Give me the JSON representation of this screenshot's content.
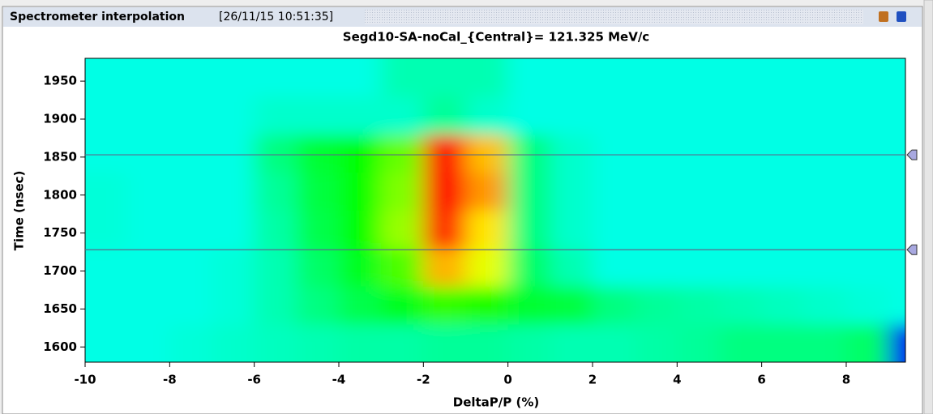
{
  "window": {
    "title": "Spectrometer interpolation",
    "timestamp": "[26/11/15 10:51:35]"
  },
  "chart_data": {
    "type": "heatmap",
    "title": "Segd10-SA-noCal_{Central}= 121.325 MeV/c",
    "x_label": "DeltaP/P (%)",
    "y_label": "Time (nsec)",
    "xlim": [
      -10,
      9.4
    ],
    "xticks": [
      -10,
      -8,
      -6,
      -4,
      -2,
      0,
      2,
      4,
      6,
      8
    ],
    "ylim": [
      1580,
      1980
    ],
    "yticks": [
      1600,
      1650,
      1700,
      1750,
      1800,
      1850,
      1900,
      1950
    ],
    "x_edges": [
      -10,
      -9,
      -8,
      -7,
      -6,
      -5,
      -4,
      -3,
      -2,
      -1,
      0,
      1,
      2,
      3,
      4,
      5,
      6,
      7,
      8,
      9,
      9.4
    ],
    "y_edges": [
      1580,
      1630,
      1680,
      1730,
      1780,
      1830,
      1880,
      1930,
      1980
    ],
    "zlim": [
      0,
      1
    ],
    "colormap": [
      "#0000c0",
      "#0000ff",
      "#00ffff",
      "#00ff00",
      "#ffff00",
      "#ff0000"
    ],
    "z": [
      [
        0.42,
        0.42,
        0.43,
        0.44,
        0.45,
        0.46,
        0.47,
        0.47,
        0.48,
        0.48,
        0.47,
        0.46,
        0.46,
        0.47,
        0.48,
        0.5,
        0.5,
        0.5,
        0.52,
        0.15
      ],
      [
        0.42,
        0.42,
        0.42,
        0.43,
        0.46,
        0.5,
        0.54,
        0.58,
        0.64,
        0.62,
        0.56,
        0.55,
        0.5,
        0.48,
        0.47,
        0.46,
        0.45,
        0.44,
        0.43,
        0.42
      ],
      [
        0.42,
        0.42,
        0.42,
        0.43,
        0.46,
        0.52,
        0.58,
        0.66,
        0.86,
        0.78,
        0.52,
        0.46,
        0.42,
        0.42,
        0.42,
        0.42,
        0.42,
        0.42,
        0.42,
        0.42
      ],
      [
        0.43,
        0.42,
        0.42,
        0.42,
        0.47,
        0.54,
        0.6,
        0.72,
        0.97,
        0.82,
        0.5,
        0.44,
        0.42,
        0.42,
        0.42,
        0.42,
        0.42,
        0.42,
        0.42,
        0.42
      ],
      [
        0.43,
        0.42,
        0.42,
        0.42,
        0.48,
        0.55,
        0.6,
        0.7,
        1.0,
        0.88,
        0.5,
        0.44,
        0.42,
        0.42,
        0.42,
        0.42,
        0.42,
        0.42,
        0.42,
        0.42
      ],
      [
        0.42,
        0.42,
        0.42,
        0.42,
        0.5,
        0.56,
        0.6,
        0.68,
        1.0,
        0.85,
        0.5,
        0.44,
        0.42,
        0.42,
        0.42,
        0.42,
        0.42,
        0.42,
        0.42,
        0.42
      ],
      [
        0.42,
        0.42,
        0.42,
        0.42,
        0.44,
        0.44,
        0.44,
        0.44,
        0.48,
        0.44,
        0.42,
        0.42,
        0.42,
        0.42,
        0.42,
        0.42,
        0.42,
        0.42,
        0.42,
        0.42
      ],
      [
        0.42,
        0.42,
        0.42,
        0.42,
        0.42,
        0.42,
        0.42,
        0.46,
        0.46,
        0.46,
        0.42,
        0.42,
        0.42,
        0.42,
        0.42,
        0.42,
        0.42,
        0.42,
        0.42,
        0.42
      ]
    ],
    "cursors": [
      1853,
      1728
    ]
  }
}
